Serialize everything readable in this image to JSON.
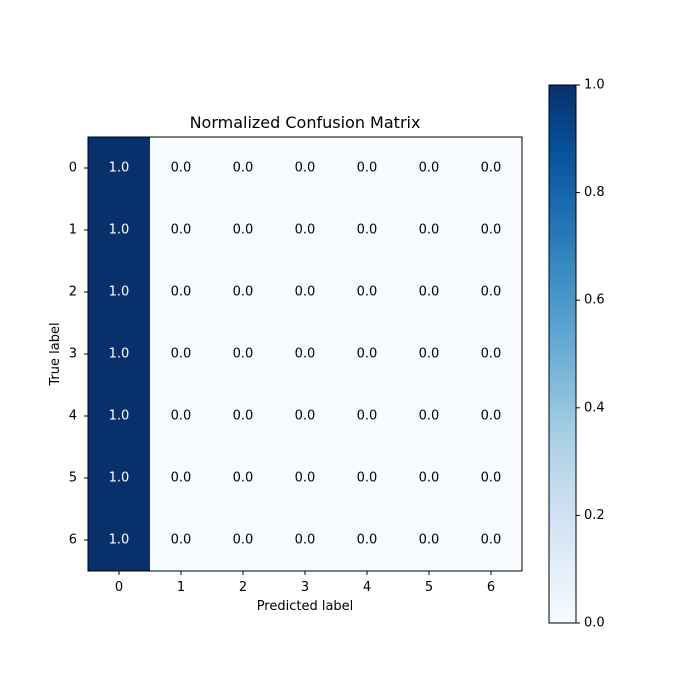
{
  "chart_data": {
    "type": "heatmap",
    "title": "Normalized Confusion Matrix",
    "xlabel": "Predicted label",
    "ylabel": "True label",
    "x_categories": [
      "0",
      "1",
      "2",
      "3",
      "4",
      "5",
      "6"
    ],
    "y_categories": [
      "0",
      "1",
      "2",
      "3",
      "4",
      "5",
      "6"
    ],
    "values": [
      [
        1.0,
        0.0,
        0.0,
        0.0,
        0.0,
        0.0,
        0.0
      ],
      [
        1.0,
        0.0,
        0.0,
        0.0,
        0.0,
        0.0,
        0.0
      ],
      [
        1.0,
        0.0,
        0.0,
        0.0,
        0.0,
        0.0,
        0.0
      ],
      [
        1.0,
        0.0,
        0.0,
        0.0,
        0.0,
        0.0,
        0.0
      ],
      [
        1.0,
        0.0,
        0.0,
        0.0,
        0.0,
        0.0,
        0.0
      ],
      [
        1.0,
        0.0,
        0.0,
        0.0,
        0.0,
        0.0,
        0.0
      ],
      [
        1.0,
        0.0,
        0.0,
        0.0,
        0.0,
        0.0,
        0.0
      ]
    ],
    "cell_labels": [
      [
        "1.0",
        "0.0",
        "0.0",
        "0.0",
        "0.0",
        "0.0",
        "0.0"
      ],
      [
        "1.0",
        "0.0",
        "0.0",
        "0.0",
        "0.0",
        "0.0",
        "0.0"
      ],
      [
        "1.0",
        "0.0",
        "0.0",
        "0.0",
        "0.0",
        "0.0",
        "0.0"
      ],
      [
        "1.0",
        "0.0",
        "0.0",
        "0.0",
        "0.0",
        "0.0",
        "0.0"
      ],
      [
        "1.0",
        "0.0",
        "0.0",
        "0.0",
        "0.0",
        "0.0",
        "0.0"
      ],
      [
        "1.0",
        "0.0",
        "0.0",
        "0.0",
        "0.0",
        "0.0",
        "0.0"
      ],
      [
        "1.0",
        "0.0",
        "0.0",
        "0.0",
        "0.0",
        "0.0",
        "0.0"
      ]
    ],
    "colormap": "Blues",
    "colorbar": {
      "range": [
        0.0,
        1.0
      ],
      "ticks": [
        0.0,
        0.2,
        0.4,
        0.6,
        0.8,
        1.0
      ],
      "tick_labels": [
        "0.0",
        "0.2",
        "0.4",
        "0.6",
        "0.8",
        "1.0"
      ]
    },
    "colors": {
      "low": "#f7fbff",
      "high": "#08306b",
      "text_on_dark": "#ffffff",
      "text_on_light": "#000000"
    },
    "grid": false
  }
}
